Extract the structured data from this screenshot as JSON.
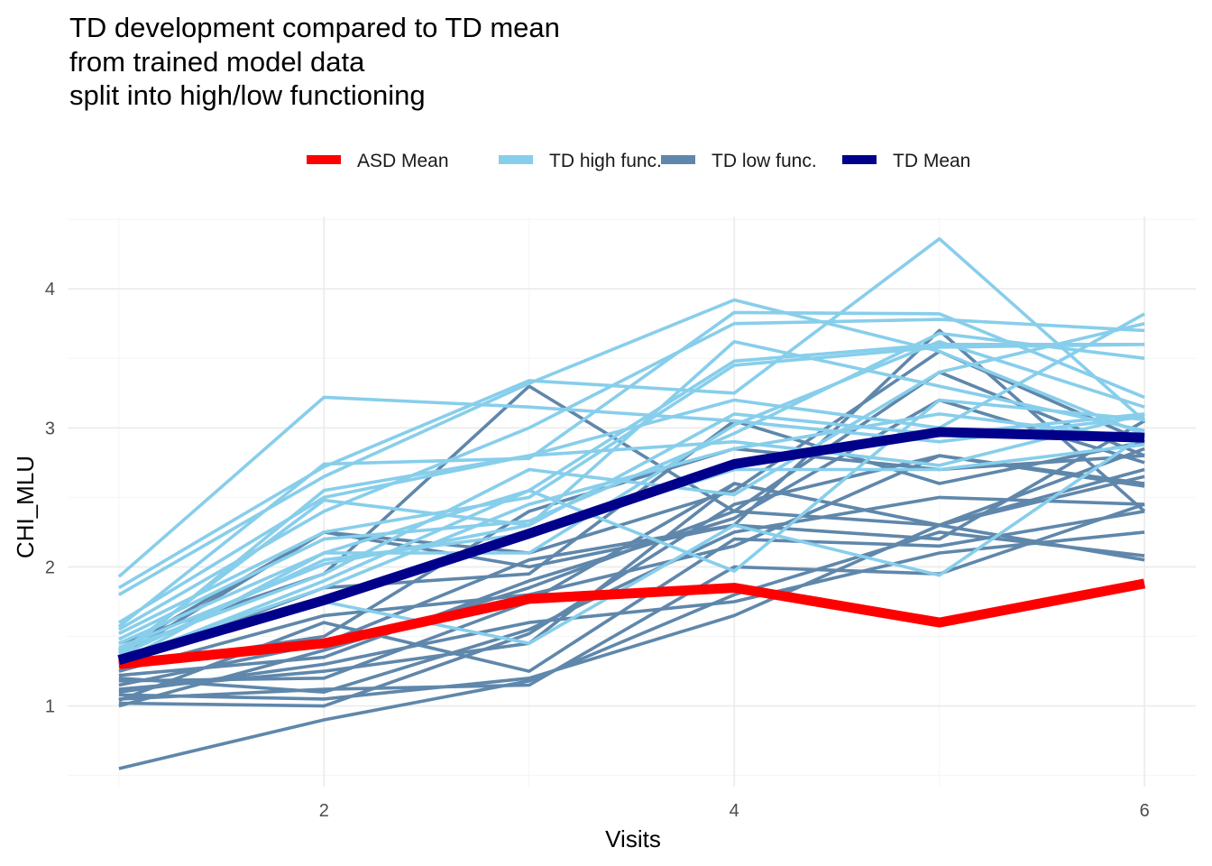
{
  "chart_data": {
    "type": "line",
    "title_lines": [
      "TD development compared to TD mean",
      "from trained model data",
      "split into high/low functioning"
    ],
    "xlabel": "Visits",
    "ylabel": "CHI_MLU",
    "xlim": [
      0.75,
      6.25
    ],
    "ylim": [
      0.42,
      4.52
    ],
    "x_ticks": [
      2,
      4,
      6
    ],
    "y_ticks": [
      1,
      2,
      3,
      4
    ],
    "grid": true,
    "legend_position": "top",
    "legend": [
      {
        "name": "ASD Mean",
        "color": "#ff0000"
      },
      {
        "name": "TD high func.",
        "color": "#87ceeb"
      },
      {
        "name": "TD low func.",
        "color": "#5f87ab"
      },
      {
        "name": "TD Mean",
        "color": "#00008b"
      }
    ],
    "x": [
      1,
      2,
      3,
      4,
      5,
      6
    ],
    "high_func": [
      [
        1.93,
        3.22,
        3.15,
        3.05,
        2.9,
        3.08
      ],
      [
        1.85,
        2.72,
        3.34,
        3.25,
        4.36,
        3.05
      ],
      [
        1.8,
        2.65,
        3.32,
        3.92,
        3.55,
        2.95
      ],
      [
        1.6,
        2.5,
        2.8,
        3.2,
        3.0,
        3.82
      ],
      [
        1.57,
        2.74,
        2.78,
        3.83,
        3.82,
        3.22
      ],
      [
        1.55,
        2.4,
        3.0,
        3.75,
        3.78,
        3.7
      ],
      [
        1.52,
        2.25,
        2.5,
        3.45,
        3.58,
        3.6
      ],
      [
        1.48,
        2.2,
        2.33,
        2.96,
        3.68,
        3.5
      ],
      [
        1.45,
        2.1,
        2.55,
        3.48,
        3.6,
        3.6
      ],
      [
        1.42,
        2.02,
        2.3,
        3.62,
        3.3,
        2.98
      ],
      [
        1.4,
        1.95,
        2.7,
        2.52,
        3.4,
        3.75
      ],
      [
        1.38,
        2.48,
        2.3,
        3.1,
        2.95,
        3.1
      ],
      [
        1.36,
        2.05,
        2.24,
        2.7,
        2.7,
        2.88
      ],
      [
        1.34,
        1.85,
        2.45,
        2.85,
        3.1,
        2.92
      ],
      [
        1.33,
        1.75,
        1.45,
        2.3,
        1.94,
        2.95
      ],
      [
        1.32,
        1.9,
        2.55,
        1.97,
        3.2,
        3.06
      ],
      [
        1.35,
        2.55,
        2.8,
        2.9,
        2.73,
        3.1
      ],
      [
        1.31,
        2.1,
        2.1,
        3.02,
        3.62,
        3.15
      ]
    ],
    "low_func": [
      [
        1.45,
        1.95,
        3.3,
        2.4,
        3.4,
        2.8
      ],
      [
        1.4,
        2.25,
        2.0,
        2.3,
        3.7,
        2.4
      ],
      [
        1.35,
        2.25,
        2.1,
        2.55,
        3.55,
        2.9
      ],
      [
        1.3,
        1.85,
        1.95,
        3.05,
        2.6,
        2.9
      ],
      [
        1.28,
        1.5,
        2.4,
        2.85,
        2.7,
        2.8
      ],
      [
        1.25,
        1.65,
        1.8,
        2.15,
        2.8,
        2.6
      ],
      [
        1.22,
        1.35,
        1.9,
        2.35,
        3.2,
        2.75
      ],
      [
        1.2,
        1.1,
        1.55,
        2.25,
        2.5,
        2.45
      ],
      [
        1.18,
        1.2,
        1.75,
        2.6,
        2.3,
        2.85
      ],
      [
        1.15,
        1.45,
        2.05,
        2.3,
        2.2,
        3.05
      ],
      [
        1.12,
        1.25,
        1.45,
        2.6,
        2.3,
        2.05
      ],
      [
        1.1,
        1.3,
        1.6,
        1.75,
        2.1,
        2.25
      ],
      [
        1.08,
        1.05,
        1.2,
        1.65,
        2.3,
        2.7
      ],
      [
        1.05,
        1.12,
        1.15,
        2.0,
        1.95,
        2.45
      ],
      [
        1.04,
        1.6,
        1.25,
        2.2,
        2.15,
        2.4
      ],
      [
        1.02,
        1.0,
        1.52,
        2.45,
        2.8,
        2.58
      ],
      [
        1.0,
        1.4,
        1.85,
        2.4,
        2.3,
        2.65
      ],
      [
        0.55,
        0.9,
        1.18,
        1.8,
        2.25,
        2.08
      ]
    ],
    "series": [
      {
        "name": "ASD Mean",
        "color": "#ff0000",
        "values": [
          1.3,
          1.45,
          1.77,
          1.85,
          1.6,
          1.88
        ]
      },
      {
        "name": "TD Mean",
        "color": "#00008b",
        "values": [
          1.33,
          1.76,
          2.24,
          2.74,
          2.97,
          2.93
        ]
      }
    ]
  }
}
